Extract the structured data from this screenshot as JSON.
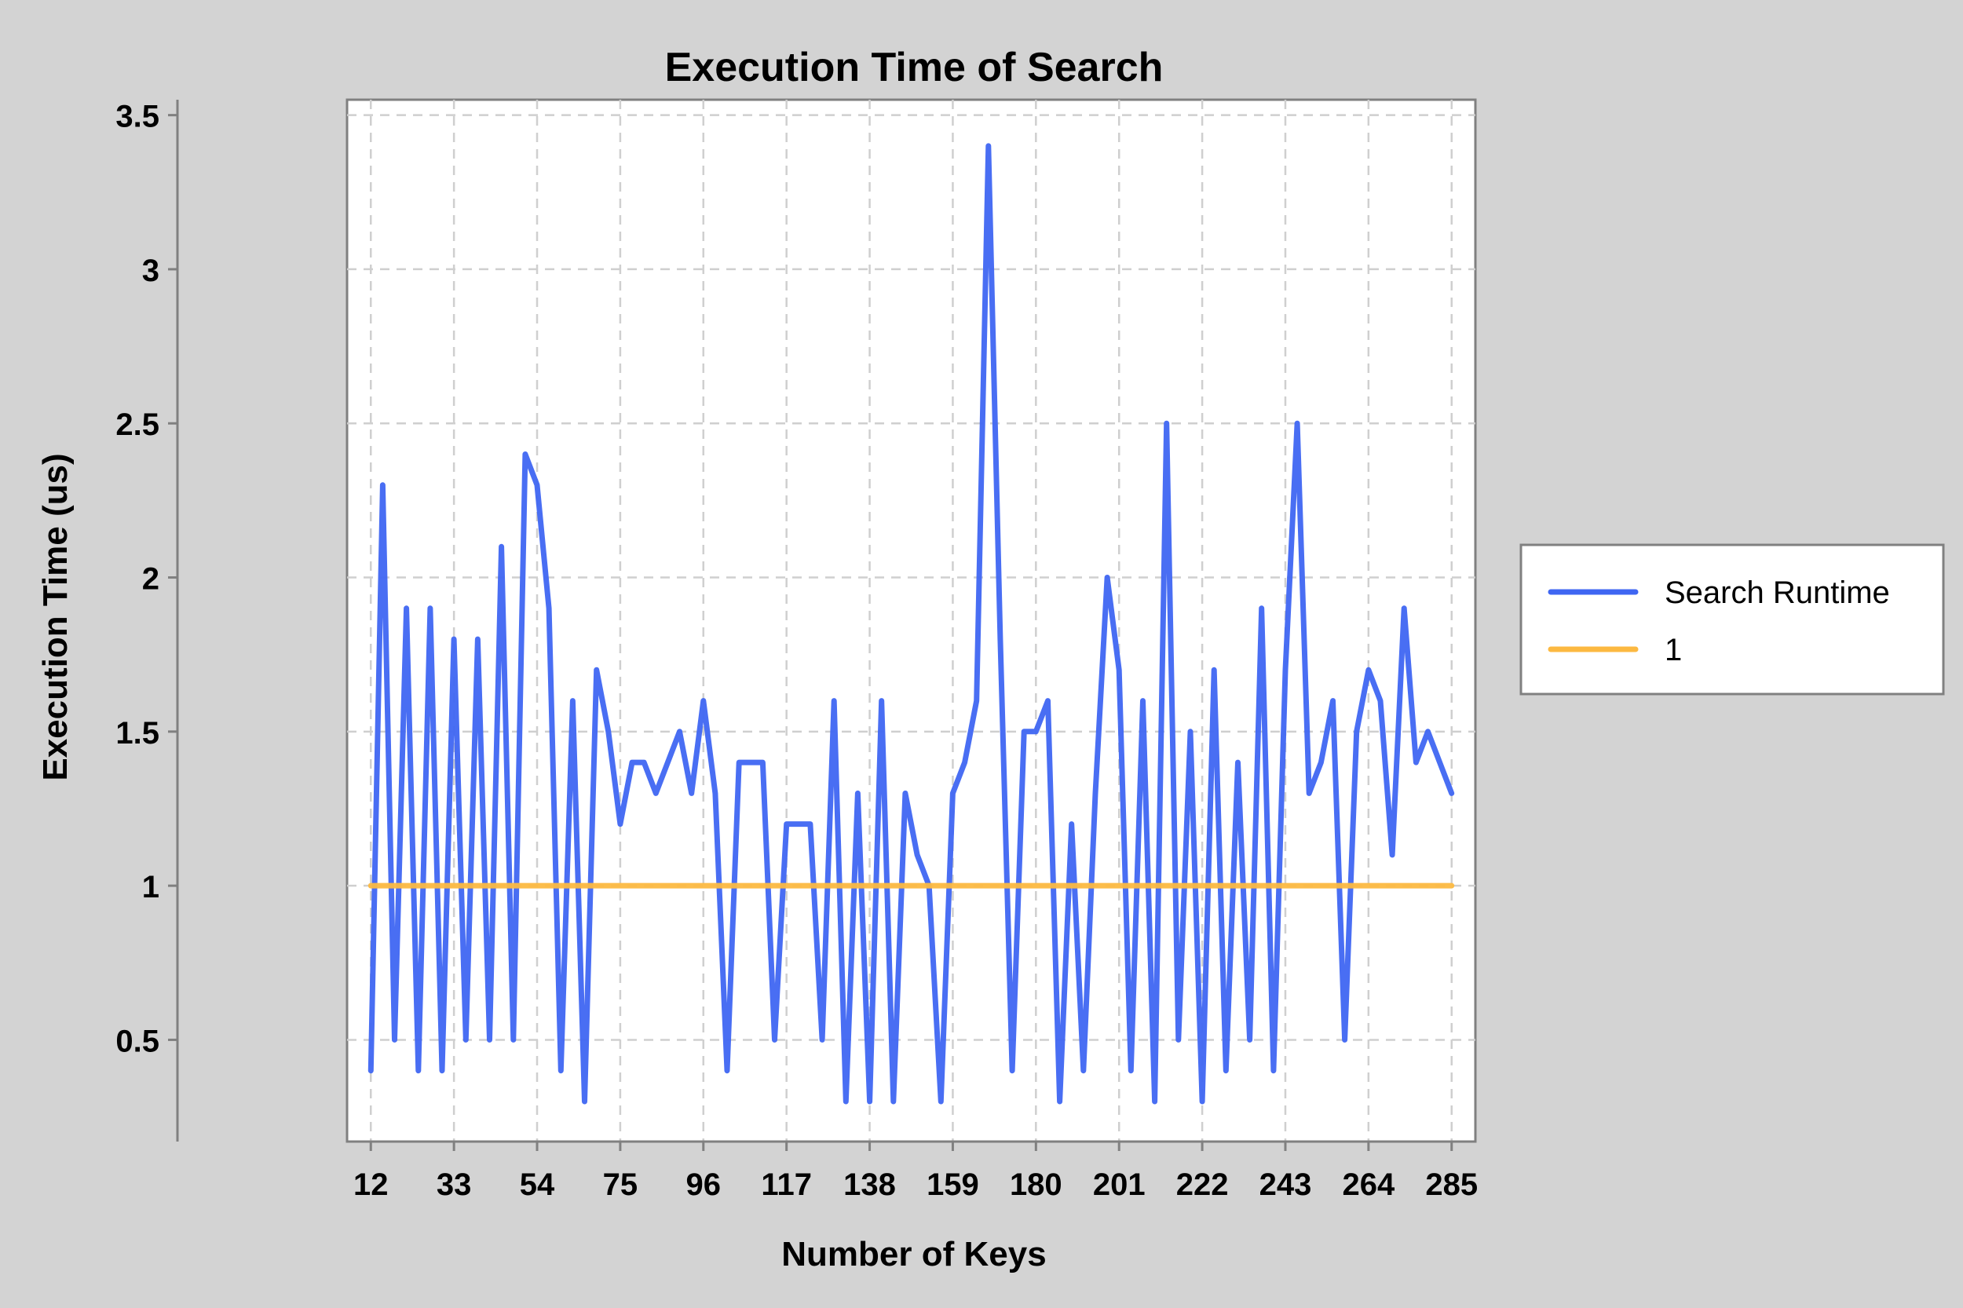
{
  "chart_data": {
    "type": "line",
    "title": "Execution Time of Search",
    "xlabel": "Number of Keys",
    "ylabel": "Execution Time (us)",
    "xlim": [
      6,
      291
    ],
    "ylim": [
      0.17,
      3.55
    ],
    "xticks": [
      12,
      33,
      54,
      75,
      96,
      117,
      138,
      159,
      180,
      201,
      222,
      243,
      264,
      285
    ],
    "yticks": [
      0.5,
      1,
      1.5,
      2,
      2.5,
      3,
      3.5
    ],
    "ytick_labels": [
      "0.5",
      "1",
      "1.5",
      "2",
      "2.5",
      "3",
      "3.5"
    ],
    "grid": true,
    "legend_position": "right",
    "colors": {
      "runtime": "#3f66f2",
      "reference": "#fcb941"
    },
    "series": [
      {
        "name": "Search Runtime",
        "x": [
          12,
          15,
          18,
          21,
          24,
          27,
          30,
          33,
          36,
          39,
          42,
          45,
          48,
          51,
          54,
          57,
          60,
          63,
          66,
          69,
          72,
          75,
          78,
          81,
          84,
          87,
          90,
          93,
          96,
          99,
          102,
          105,
          108,
          111,
          114,
          117,
          120,
          123,
          126,
          129,
          132,
          135,
          138,
          141,
          144,
          147,
          150,
          153,
          156,
          159,
          162,
          165,
          168,
          171,
          174,
          177,
          180,
          183,
          186,
          189,
          192,
          195,
          198,
          201,
          204,
          207,
          210,
          213,
          216,
          219,
          222,
          225,
          228,
          231,
          234,
          237,
          240,
          243,
          246,
          249,
          252,
          255,
          258,
          261,
          264,
          267,
          270,
          273,
          276,
          279,
          282,
          285
        ],
        "values": [
          0.4,
          2.3,
          0.5,
          1.9,
          0.4,
          1.9,
          0.4,
          1.8,
          0.5,
          1.8,
          0.5,
          2.1,
          0.5,
          2.4,
          2.3,
          1.9,
          0.4,
          1.6,
          0.3,
          1.7,
          1.5,
          1.2,
          1.4,
          1.4,
          1.3,
          1.4,
          1.5,
          1.3,
          1.6,
          1.3,
          0.4,
          1.4,
          1.4,
          1.4,
          0.5,
          1.2,
          1.2,
          1.2,
          0.5,
          1.6,
          0.3,
          1.3,
          0.3,
          1.6,
          0.3,
          1.3,
          1.1,
          1.0,
          0.3,
          1.3,
          1.4,
          1.6,
          3.4,
          1.8,
          0.4,
          1.5,
          1.5,
          1.6,
          0.3,
          1.2,
          0.4,
          1.3,
          2.0,
          1.7,
          0.4,
          1.6,
          0.3,
          2.5,
          0.5,
          1.5,
          0.3,
          1.7,
          0.4,
          1.4,
          0.5,
          1.9,
          0.4,
          1.7,
          2.5,
          1.3,
          1.4,
          1.6,
          0.5,
          1.5,
          1.7,
          1.6,
          1.1,
          1.9,
          1.4,
          1.5,
          1.4,
          1.3
        ]
      },
      {
        "name": "1",
        "x": [
          12,
          285
        ],
        "values": [
          1,
          1
        ]
      }
    ]
  }
}
